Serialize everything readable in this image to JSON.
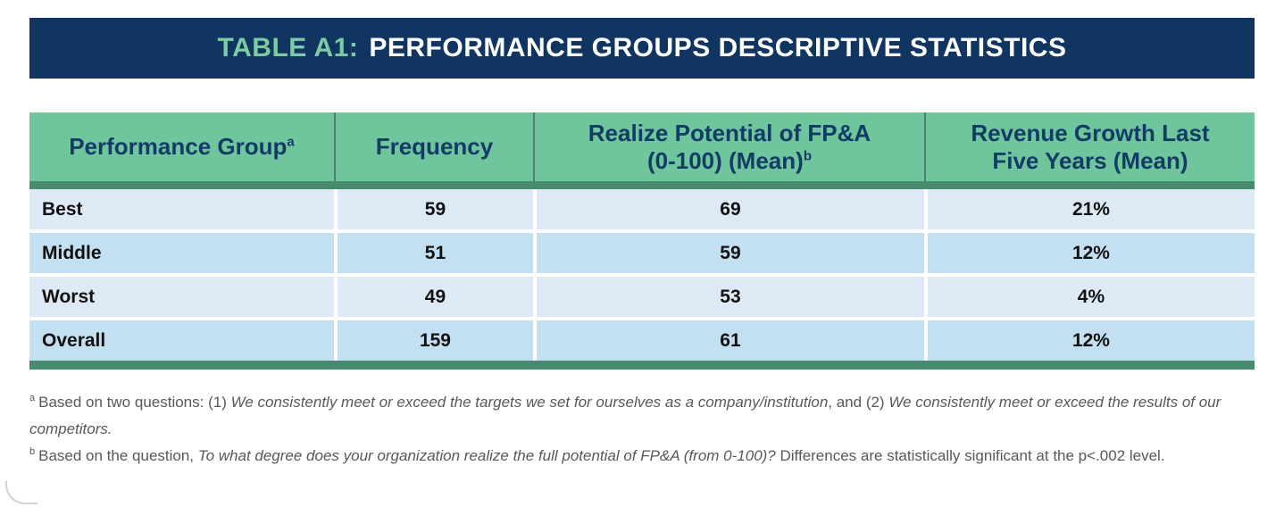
{
  "title": {
    "prefix": "TABLE A1:",
    "main": "PERFORMANCE GROUPS DESCRIPTIVE STATISTICS"
  },
  "table": {
    "columns": [
      {
        "lines": [
          "Performance Group"
        ],
        "sup": "a"
      },
      {
        "lines": [
          "Frequency"
        ],
        "sup": ""
      },
      {
        "lines": [
          "Realize Potential of FP&A",
          "(0-100) (Mean)"
        ],
        "sup": "b"
      },
      {
        "lines": [
          "Revenue Growth Last",
          "Five Years (Mean)"
        ],
        "sup": ""
      }
    ],
    "rows": [
      {
        "cells": [
          "Best",
          "59",
          "69",
          "21%"
        ]
      },
      {
        "cells": [
          "Middle",
          "51",
          "59",
          "12%"
        ]
      },
      {
        "cells": [
          "Worst",
          "49",
          "53",
          "4%"
        ]
      },
      {
        "cells": [
          "Overall",
          "159",
          "61",
          "12%"
        ]
      }
    ]
  },
  "footnotes": [
    {
      "marker": "a",
      "segments": [
        {
          "text": "Based on two questions: (1) ",
          "italic": false
        },
        {
          "text": "We consistently meet or exceed the targets we set for ourselves as a company/institution",
          "italic": true
        },
        {
          "text": ", and (2) ",
          "italic": false
        },
        {
          "text": "We consistently meet or exceed the results of our competitors.",
          "italic": true
        }
      ]
    },
    {
      "marker": "b",
      "segments": [
        {
          "text": "Based on the question, ",
          "italic": false
        },
        {
          "text": "To what degree does your organization realize the full potential of FP&A (from 0-100)? ",
          "italic": true
        },
        {
          "text": "Differences are statistically significant at the p<.002 level.",
          "italic": false
        }
      ]
    }
  ],
  "colors": {
    "navy": "#0f3560",
    "mint_accent": "#7dcba5",
    "header_green": "#6fc69c",
    "band_green": "#488a6d",
    "row_light_blue": "#ddeaf6",
    "row_dark_blue": "#c3dff2",
    "header_text_navy": "#123c66",
    "footnote_gray": "#58585a"
  },
  "chart_data": {
    "type": "table",
    "title": "TABLE A1: PERFORMANCE GROUPS DESCRIPTIVE STATISTICS",
    "columns": [
      "Performance Group",
      "Frequency",
      "Realize Potential of FP&A (0-100) (Mean)",
      "Revenue Growth Last Five Years (Mean)"
    ],
    "rows": [
      [
        "Best",
        59,
        69,
        "21%"
      ],
      [
        "Middle",
        51,
        59,
        "12%"
      ],
      [
        "Worst",
        49,
        53,
        "4%"
      ],
      [
        "Overall",
        159,
        61,
        "12%"
      ]
    ]
  }
}
